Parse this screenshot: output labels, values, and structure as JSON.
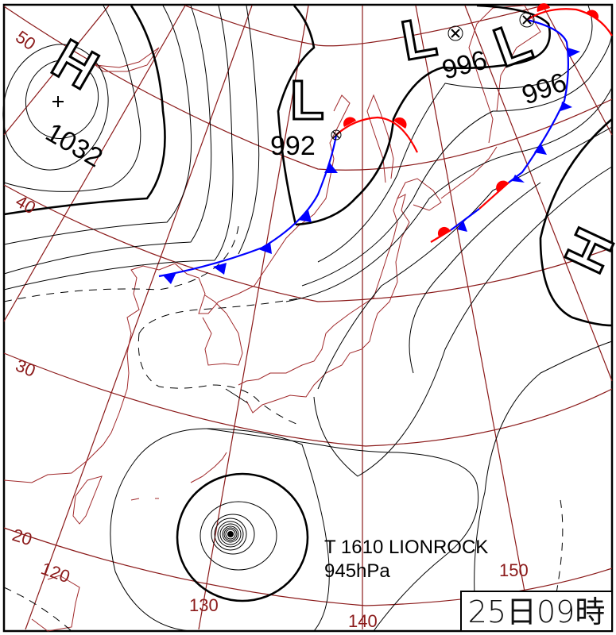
{
  "map": {
    "latitude_labels": [
      "50",
      "40",
      "30",
      "20"
    ],
    "longitude_labels": [
      "120",
      "130",
      "140",
      "150"
    ],
    "pressure_systems": [
      {
        "type": "H",
        "pressure": "1032"
      },
      {
        "type": "L",
        "pressure": "992"
      },
      {
        "type": "L",
        "pressure": "996"
      },
      {
        "type": "L",
        "pressure": "996"
      },
      {
        "type": "H",
        "pressure": ""
      }
    ],
    "typhoon": {
      "name": "T 1610 LIONROCK",
      "pressure": "945hPa"
    },
    "timestamp": "25日09時",
    "colors": {
      "grid": "#8b1a1a",
      "cold_front": "#0000ff",
      "warm_front": "#ff0000",
      "isobar": "#000000"
    }
  }
}
